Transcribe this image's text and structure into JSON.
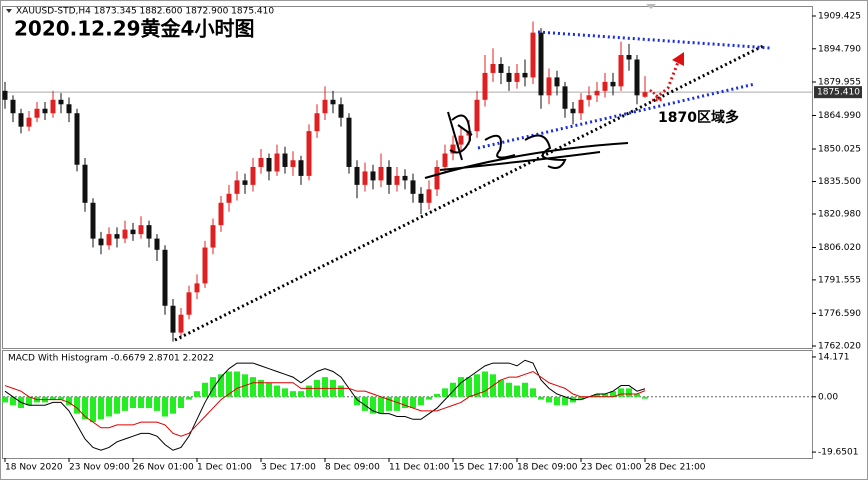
{
  "chart_data": [
    {
      "type": "candlestick",
      "header": "XAUUSD-STD,H4  1873.345 1882.600 1872.900 1875.410",
      "title": "2020.12.29黄金4小时图",
      "annotation": "1870区域多",
      "categories": [
        "18 Nov 2020",
        null,
        null,
        null,
        null,
        null,
        null,
        null,
        "23 Nov 09:00",
        null,
        null,
        null,
        null,
        null,
        null,
        null,
        "26 Nov 01:00",
        null,
        null,
        null,
        null,
        null,
        null,
        null,
        "1 Dec 01:00",
        null,
        null,
        null,
        null,
        null,
        null,
        null,
        "3 Dec 17:00",
        null,
        null,
        null,
        null,
        null,
        null,
        null,
        "8 Dec 09:00",
        null,
        null,
        null,
        null,
        null,
        null,
        null,
        "11 Dec 01:00",
        null,
        null,
        null,
        null,
        null,
        null,
        null,
        "15 Dec 17:00",
        null,
        null,
        null,
        null,
        null,
        null,
        null,
        "18 Dec 09:00",
        null,
        null,
        null,
        null,
        null,
        null,
        null,
        "23 Dec 01:00",
        null,
        null,
        null,
        null,
        null,
        null,
        null,
        "28 Dec 21:00"
      ],
      "open": [
        1876,
        1872,
        1866,
        1860,
        1864,
        1868,
        1866,
        1872,
        1870,
        1866,
        1843,
        1826,
        1810,
        1807,
        1812,
        1810,
        1814,
        1812,
        1816,
        1810,
        1805,
        1780,
        1768,
        1776,
        1786,
        1790,
        1806,
        1816,
        1826,
        1830,
        1836,
        1834,
        1842,
        1846,
        1840,
        1848,
        1842,
        1845,
        1838,
        1858,
        1866,
        1872,
        1870,
        1864,
        1842,
        1834,
        1840,
        1836,
        1842,
        1834,
        1838,
        1836,
        1830,
        1826,
        1832,
        1842,
        1848,
        1852,
        1856,
        1858,
        1872,
        1884,
        1888,
        1884,
        1880,
        1884,
        1882,
        1902,
        1874,
        1882,
        1878,
        1868,
        1866,
        1872,
        1874,
        1876,
        1880,
        1878,
        1892,
        1890,
        1873.345
      ],
      "high": [
        1880,
        1874,
        1868,
        1867,
        1871,
        1871,
        1876,
        1875,
        1873,
        1868,
        1846,
        1828,
        1813,
        1815,
        1815,
        1818,
        1817,
        1820,
        1818,
        1812,
        1807,
        1783,
        1779,
        1789,
        1794,
        1809,
        1819,
        1829,
        1834,
        1840,
        1839,
        1846,
        1850,
        1848,
        1852,
        1851,
        1849,
        1847,
        1861,
        1870,
        1878,
        1876,
        1873,
        1866,
        1845,
        1844,
        1843,
        1848,
        1845,
        1842,
        1841,
        1839,
        1833,
        1836,
        1845,
        1852,
        1856,
        1860,
        1863,
        1876,
        1892,
        1895,
        1891,
        1887,
        1888,
        1890,
        1907,
        1904,
        1886,
        1885,
        1880,
        1871,
        1875,
        1878,
        1880,
        1884,
        1884,
        1898,
        1897,
        1892,
        1882.6
      ],
      "low": [
        1868,
        1862,
        1857,
        1858,
        1862,
        1863,
        1864,
        1866,
        1862,
        1840,
        1822,
        1806,
        1803,
        1805,
        1806,
        1808,
        1809,
        1810,
        1806,
        1800,
        1776,
        1764,
        1765,
        1774,
        1783,
        1788,
        1803,
        1813,
        1822,
        1827,
        1830,
        1831,
        1839,
        1836,
        1838,
        1839,
        1838,
        1834,
        1836,
        1855,
        1863,
        1866,
        1860,
        1839,
        1828,
        1831,
        1832,
        1833,
        1830,
        1831,
        1832,
        1826,
        1821,
        1823,
        1829,
        1839,
        1845,
        1849,
        1852,
        1855,
        1869,
        1880,
        1879,
        1876,
        1877,
        1878,
        1879,
        1868,
        1870,
        1874,
        1864,
        1861,
        1863,
        1869,
        1871,
        1873,
        1874,
        1876,
        1885,
        1870,
        1872.9
      ],
      "close": [
        1872,
        1866,
        1860,
        1864,
        1868,
        1866,
        1872,
        1870,
        1866,
        1843,
        1826,
        1810,
        1807,
        1812,
        1810,
        1814,
        1812,
        1816,
        1810,
        1805,
        1780,
        1768,
        1776,
        1786,
        1790,
        1806,
        1816,
        1826,
        1830,
        1836,
        1834,
        1842,
        1846,
        1840,
        1848,
        1842,
        1845,
        1838,
        1858,
        1866,
        1872,
        1870,
        1864,
        1842,
        1834,
        1840,
        1836,
        1842,
        1834,
        1838,
        1836,
        1830,
        1826,
        1832,
        1842,
        1848,
        1852,
        1856,
        1858,
        1872,
        1884,
        1888,
        1884,
        1880,
        1884,
        1882,
        1902,
        1874,
        1882,
        1878,
        1868,
        1866,
        1872,
        1874,
        1876,
        1880,
        1878,
        1892,
        1890,
        1874,
        1875.41
      ],
      "up_color": "#e02020",
      "down_color": "#111111",
      "ylim": [
        1761.13,
        1913.45
      ],
      "yticks": [
        1909.425,
        {
          "value": 1894.79,
          "label": "1894.790"
        },
        1879.955,
        {
          "value": 1864.99,
          "label": "1864.990"
        },
        1850.025,
        {
          "value": 1835.5,
          "label": "1835.500"
        },
        {
          "value": 1820.98,
          "label": "1820.980"
        },
        {
          "value": 1806.02,
          "label": "1806.020"
        },
        1791.555,
        {
          "value": 1776.59,
          "label": "1776.590"
        },
        {
          "value": 1762.02,
          "label": "1762.020"
        }
      ],
      "last_price": {
        "value": 1875.41,
        "label": "1875.410"
      }
    },
    {
      "type": "macd",
      "header": "MACD With Histogram -0.6679 2.8701 2.2022",
      "histogram": {
        "color": "#22ee22",
        "values": [
          -2,
          -3,
          -4,
          -3,
          -2,
          -2,
          -1,
          -1,
          -3,
          -6,
          -8,
          -9,
          -8,
          -7,
          -6,
          -5,
          -4,
          -4,
          -4,
          -5,
          -7,
          -6,
          -4,
          -1,
          2,
          5,
          7,
          8,
          9,
          9,
          8,
          7,
          6,
          5,
          4,
          3,
          2,
          2,
          4,
          6,
          7,
          6,
          4,
          0,
          -3,
          -5,
          -6,
          -6,
          -5,
          -5,
          -4,
          -4,
          -3,
          -1,
          1,
          3,
          5,
          7,
          7,
          8,
          9,
          8,
          6,
          5,
          4,
          5,
          3,
          -1,
          -2,
          -3,
          -3,
          -2,
          -1,
          0,
          1,
          1,
          2,
          3,
          3,
          1,
          -0.6679
        ]
      },
      "macd": {
        "color": "#000000",
        "values": [
          2,
          0,
          -2,
          -3,
          -3,
          -3,
          -2,
          -2,
          -5,
          -10,
          -15,
          -18,
          -19,
          -18,
          -16,
          -15,
          -14,
          -13,
          -13,
          -14,
          -17,
          -19,
          -18,
          -14,
          -8,
          -2,
          3,
          7,
          10,
          12,
          12,
          12,
          11,
          10,
          9,
          8,
          7,
          5,
          7,
          9,
          10,
          9,
          7,
          3,
          -1,
          -3,
          -5,
          -6,
          -6,
          -7,
          -7,
          -8,
          -8,
          -6,
          -4,
          -1,
          2,
          5,
          7,
          9,
          11,
          12,
          12,
          12,
          11,
          13,
          12,
          6,
          3,
          1,
          0,
          -1,
          -1,
          0,
          1,
          1,
          2,
          4,
          4,
          2,
          2.8701
        ]
      },
      "signal": {
        "color": "#dd0000",
        "values": [
          4,
          3,
          2,
          0,
          -1,
          -1,
          -1,
          -1,
          -2,
          -4,
          -7,
          -9,
          -11,
          -11,
          -10,
          -10,
          -10,
          -9,
          -9,
          -9,
          -10,
          -13,
          -14,
          -13,
          -10,
          -7,
          -4,
          -1,
          1,
          3,
          4,
          5,
          5,
          5,
          5,
          5,
          5,
          3,
          3,
          3,
          3,
          3,
          3,
          3,
          2,
          2,
          1,
          0,
          -1,
          -2,
          -3,
          -4,
          -5,
          -5,
          -5,
          -4,
          -3,
          -2,
          0,
          1,
          2,
          4,
          6,
          7,
          7,
          8,
          9,
          7,
          5,
          4,
          3,
          1,
          0,
          0,
          0,
          0,
          0,
          1,
          1,
          1,
          2.2022
        ]
      },
      "ylim": [
        -21.76,
        16.29
      ],
      "yticks": [
        14.171,
        {
          "value": 0,
          "label": "0.00"
        },
        -19.6501
      ]
    }
  ]
}
